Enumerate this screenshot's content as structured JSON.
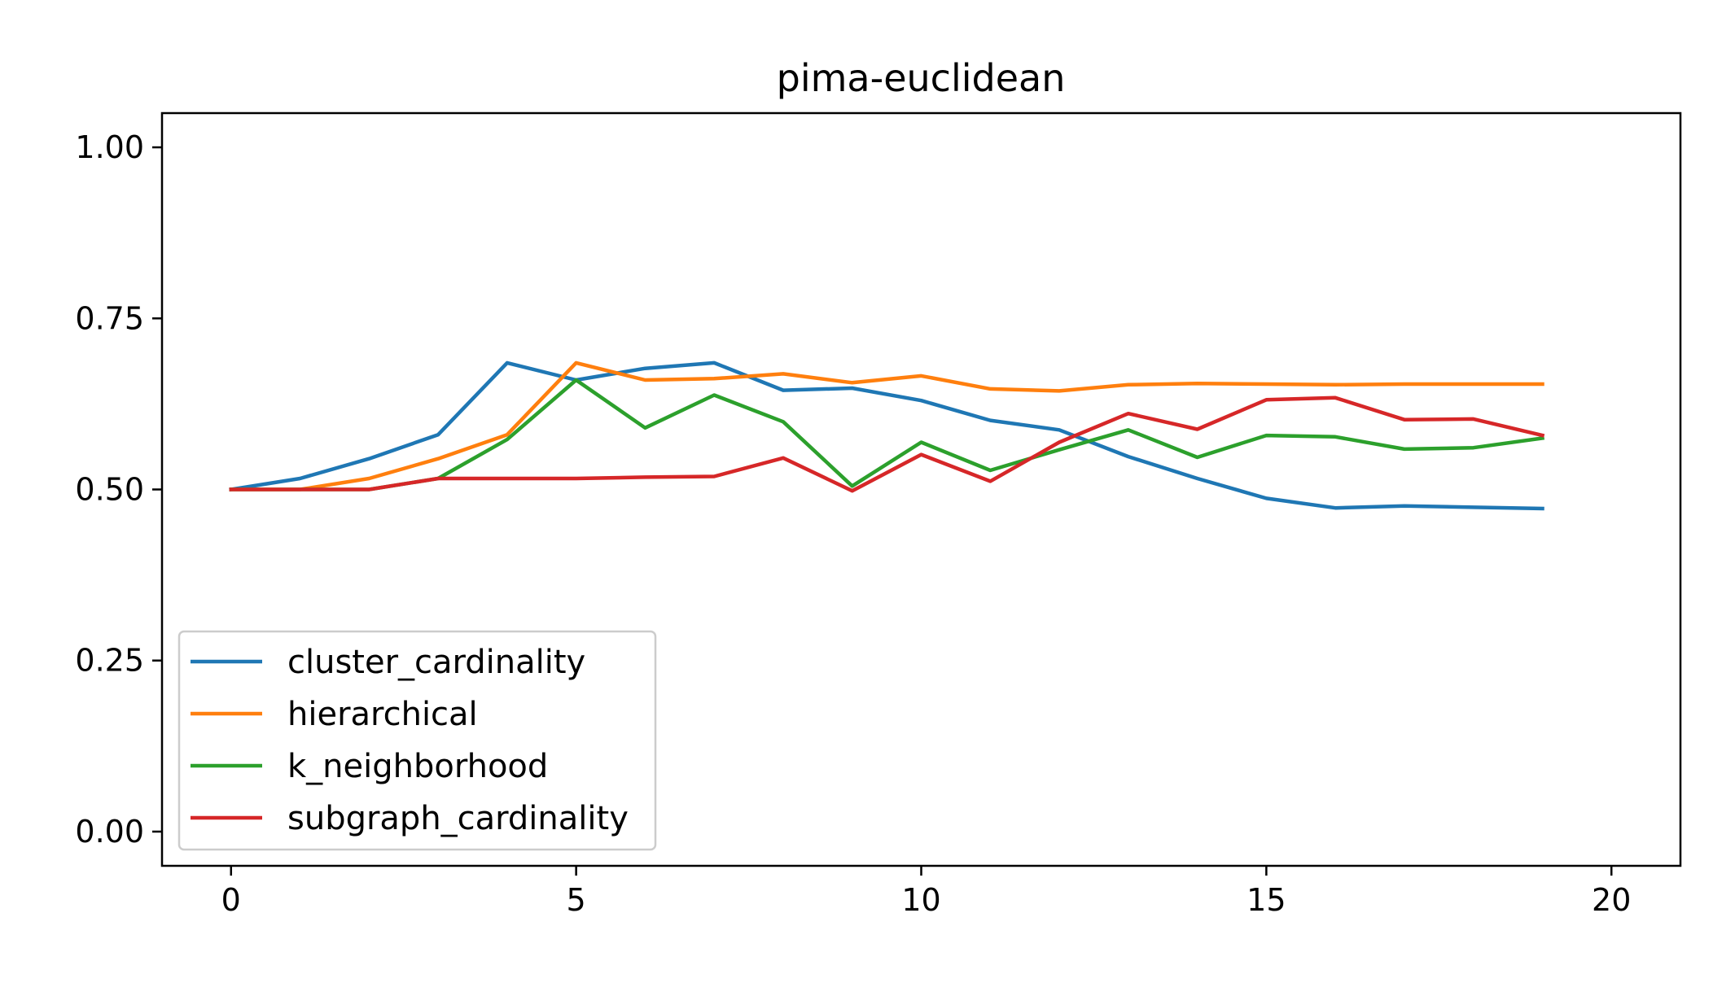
{
  "chart_data": {
    "type": "line",
    "title": "pima-euclidean",
    "xlabel": "",
    "ylabel": "",
    "xlim": [
      -1,
      21
    ],
    "ylim": [
      -0.05,
      1.05
    ],
    "xticks": [
      0,
      5,
      10,
      15,
      20
    ],
    "xtick_labels": [
      "0",
      "5",
      "10",
      "15",
      "20"
    ],
    "yticks": [
      0.0,
      0.25,
      0.5,
      0.75,
      1.0
    ],
    "ytick_labels": [
      "0.00",
      "0.25",
      "0.50",
      "0.75",
      "1.00"
    ],
    "grid": false,
    "legend_position": "lower-left",
    "x": [
      0,
      1,
      2,
      3,
      4,
      5,
      6,
      7,
      8,
      9,
      10,
      11,
      12,
      13,
      14,
      15,
      16,
      17,
      18,
      19
    ],
    "series": [
      {
        "name": "cluster_cardinality",
        "color": "#1f77b4",
        "values": [
          0.5,
          0.516,
          0.545,
          0.58,
          0.685,
          0.66,
          0.677,
          0.685,
          0.645,
          0.648,
          0.63,
          0.601,
          0.587,
          0.548,
          0.516,
          0.487,
          0.473,
          0.476,
          0.474,
          0.472
        ]
      },
      {
        "name": "hierarchical",
        "color": "#ff7f0e",
        "values": [
          0.5,
          0.5,
          0.516,
          0.545,
          0.58,
          0.685,
          0.66,
          0.662,
          0.669,
          0.656,
          0.666,
          0.647,
          0.644,
          0.653,
          0.655,
          0.654,
          0.653,
          0.654,
          0.654,
          0.654
        ]
      },
      {
        "name": "k_neighborhood",
        "color": "#2ca02c",
        "values": [
          0.5,
          0.5,
          0.5,
          0.516,
          0.573,
          0.66,
          0.59,
          0.638,
          0.599,
          0.505,
          0.569,
          0.528,
          0.558,
          0.587,
          0.547,
          0.579,
          0.577,
          0.559,
          0.561,
          0.575
        ]
      },
      {
        "name": "subgraph_cardinality",
        "color": "#d62728",
        "values": [
          0.5,
          0.5,
          0.5,
          0.516,
          0.516,
          0.516,
          0.518,
          0.519,
          0.546,
          0.498,
          0.551,
          0.512,
          0.569,
          0.611,
          0.588,
          0.631,
          0.634,
          0.602,
          0.603,
          0.579
        ]
      }
    ]
  }
}
